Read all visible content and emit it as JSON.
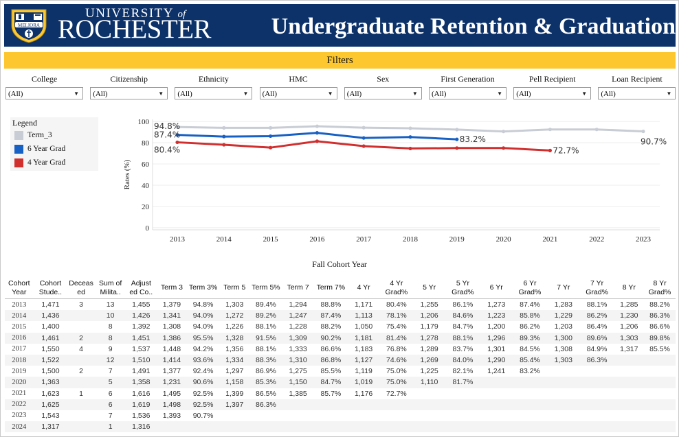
{
  "header": {
    "university_top": "UNIVERSITY",
    "university_of": "of",
    "university_main": "ROCHESTER",
    "logo_text": "MELIORA",
    "title": "Undergraduate Retention & Graduation",
    "brand_color": "#0d3269",
    "accent_color": "#fdc82f"
  },
  "filters": {
    "title": "Filters",
    "items": [
      {
        "label": "College",
        "value": "(All)"
      },
      {
        "label": "Citizenship",
        "value": "(All)"
      },
      {
        "label": "Ethnicity",
        "value": "(All)"
      },
      {
        "label": "HMC",
        "value": "(All)"
      },
      {
        "label": "Sex",
        "value": "(All)"
      },
      {
        "label": "First Generation",
        "value": "(All)"
      },
      {
        "label": "Pell Recipient",
        "value": "(All)"
      },
      {
        "label": "Loan Recipient",
        "value": "(All)"
      }
    ]
  },
  "legend": {
    "title": "Legend",
    "items": [
      {
        "label": "Term_3",
        "color": "#c8ccd4"
      },
      {
        "label": "6 Year Grad",
        "color": "#1861c4"
      },
      {
        "label": "4 Year Grad",
        "color": "#d12e2e"
      }
    ]
  },
  "chart_data": {
    "type": "line",
    "x": [
      2013,
      2014,
      2015,
      2016,
      2017,
      2018,
      2019,
      2020,
      2021,
      2022,
      2023
    ],
    "ylabel": "Rates (%)",
    "xlabel": "Fall Cohort Year",
    "yticks": [
      0,
      20,
      40,
      60,
      80,
      100
    ],
    "ylim": [
      -2,
      102
    ],
    "series": [
      {
        "name": "Term_3",
        "color": "#c8ccd4",
        "values": [
          94.8,
          94.0,
          94.0,
          95.5,
          94.2,
          93.6,
          92.4,
          90.6,
          92.5,
          92.5,
          90.7
        ],
        "labels": {
          "first": "94.8%",
          "last": "90.7%"
        }
      },
      {
        "name": "6 Year Grad",
        "color": "#1861c4",
        "values": [
          87.4,
          85.8,
          86.2,
          89.3,
          84.5,
          85.4,
          83.2,
          null,
          null,
          null,
          null
        ],
        "labels": {
          "first": "87.4%",
          "last": "83.2%"
        }
      },
      {
        "name": "4 Year Grad",
        "color": "#d12e2e",
        "values": [
          80.4,
          78.1,
          75.4,
          81.4,
          76.8,
          74.6,
          75.0,
          75.0,
          72.7,
          null,
          null
        ],
        "labels": {
          "first": "80.4%",
          "last": "72.7%"
        }
      }
    ]
  },
  "table": {
    "columns": [
      "Cohort Year",
      "Cohort Stude..",
      "Deceas ed",
      "Sum of Milita..",
      "Adjust ed Co..",
      "Term 3",
      "Term 3%",
      "Term 5",
      "Term 5%",
      "Term 7",
      "Term 7%",
      "4 Yr",
      "4 Yr Grad%",
      "5 Yr",
      "5 Yr Grad%",
      "6 Yr",
      "6 Yr Grad%",
      "7 Yr",
      "7 Yr Grad%",
      "8 Yr",
      "8 Yr Grad%"
    ],
    "rows": [
      [
        "2013",
        "1,471",
        "3",
        "13",
        "1,455",
        "1,379",
        "94.8%",
        "1,303",
        "89.4%",
        "1,294",
        "88.8%",
        "1,171",
        "80.4%",
        "1,255",
        "86.1%",
        "1,273",
        "87.4%",
        "1,283",
        "88.1%",
        "1,285",
        "88.2%"
      ],
      [
        "2014",
        "1,436",
        "",
        "10",
        "1,426",
        "1,341",
        "94.0%",
        "1,272",
        "89.2%",
        "1,247",
        "87.4%",
        "1,113",
        "78.1%",
        "1,206",
        "84.6%",
        "1,223",
        "85.8%",
        "1,229",
        "86.2%",
        "1,230",
        "86.3%"
      ],
      [
        "2015",
        "1,400",
        "",
        "8",
        "1,392",
        "1,308",
        "94.0%",
        "1,226",
        "88.1%",
        "1,228",
        "88.2%",
        "1,050",
        "75.4%",
        "1,179",
        "84.7%",
        "1,200",
        "86.2%",
        "1,203",
        "86.4%",
        "1,206",
        "86.6%"
      ],
      [
        "2016",
        "1,461",
        "2",
        "8",
        "1,451",
        "1,386",
        "95.5%",
        "1,328",
        "91.5%",
        "1,309",
        "90.2%",
        "1,181",
        "81.4%",
        "1,278",
        "88.1%",
        "1,296",
        "89.3%",
        "1,300",
        "89.6%",
        "1,303",
        "89.8%"
      ],
      [
        "2017",
        "1,550",
        "4",
        "9",
        "1,537",
        "1,448",
        "94.2%",
        "1,356",
        "88.1%",
        "1,333",
        "86.6%",
        "1,183",
        "76.8%",
        "1,289",
        "83.7%",
        "1,301",
        "84.5%",
        "1,308",
        "84.9%",
        "1,317",
        "85.5%"
      ],
      [
        "2018",
        "1,522",
        "",
        "12",
        "1,510",
        "1,414",
        "93.6%",
        "1,334",
        "88.3%",
        "1,310",
        "86.8%",
        "1,127",
        "74.6%",
        "1,269",
        "84.0%",
        "1,290",
        "85.4%",
        "1,303",
        "86.3%",
        "",
        ""
      ],
      [
        "2019",
        "1,500",
        "2",
        "7",
        "1,491",
        "1,377",
        "92.4%",
        "1,297",
        "86.9%",
        "1,275",
        "85.5%",
        "1,119",
        "75.0%",
        "1,225",
        "82.1%",
        "1,241",
        "83.2%",
        "",
        "",
        "",
        ""
      ],
      [
        "2020",
        "1,363",
        "",
        "5",
        "1,358",
        "1,231",
        "90.6%",
        "1,158",
        "85.3%",
        "1,150",
        "84.7%",
        "1,019",
        "75.0%",
        "1,110",
        "81.7%",
        "",
        "",
        "",
        "",
        "",
        ""
      ],
      [
        "2021",
        "1,623",
        "1",
        "6",
        "1,616",
        "1,495",
        "92.5%",
        "1,399",
        "86.5%",
        "1,385",
        "85.7%",
        "1,176",
        "72.7%",
        "",
        "",
        "",
        "",
        "",
        "",
        "",
        ""
      ],
      [
        "2022",
        "1,625",
        "",
        "6",
        "1,619",
        "1,498",
        "92.5%",
        "1,397",
        "86.3%",
        "",
        "",
        "",
        "",
        "",
        "",
        "",
        "",
        "",
        "",
        "",
        ""
      ],
      [
        "2023",
        "1,543",
        "",
        "7",
        "1,536",
        "1,393",
        "90.7%",
        "",
        "",
        "",
        "",
        "",
        "",
        "",
        "",
        "",
        "",
        "",
        "",
        "",
        ""
      ],
      [
        "2024",
        "1,317",
        "",
        "1",
        "1,316",
        "",
        "",
        "",
        "",
        "",
        "",
        "",
        "",
        "",
        "",
        "",
        "",
        "",
        "",
        "",
        ""
      ]
    ]
  }
}
